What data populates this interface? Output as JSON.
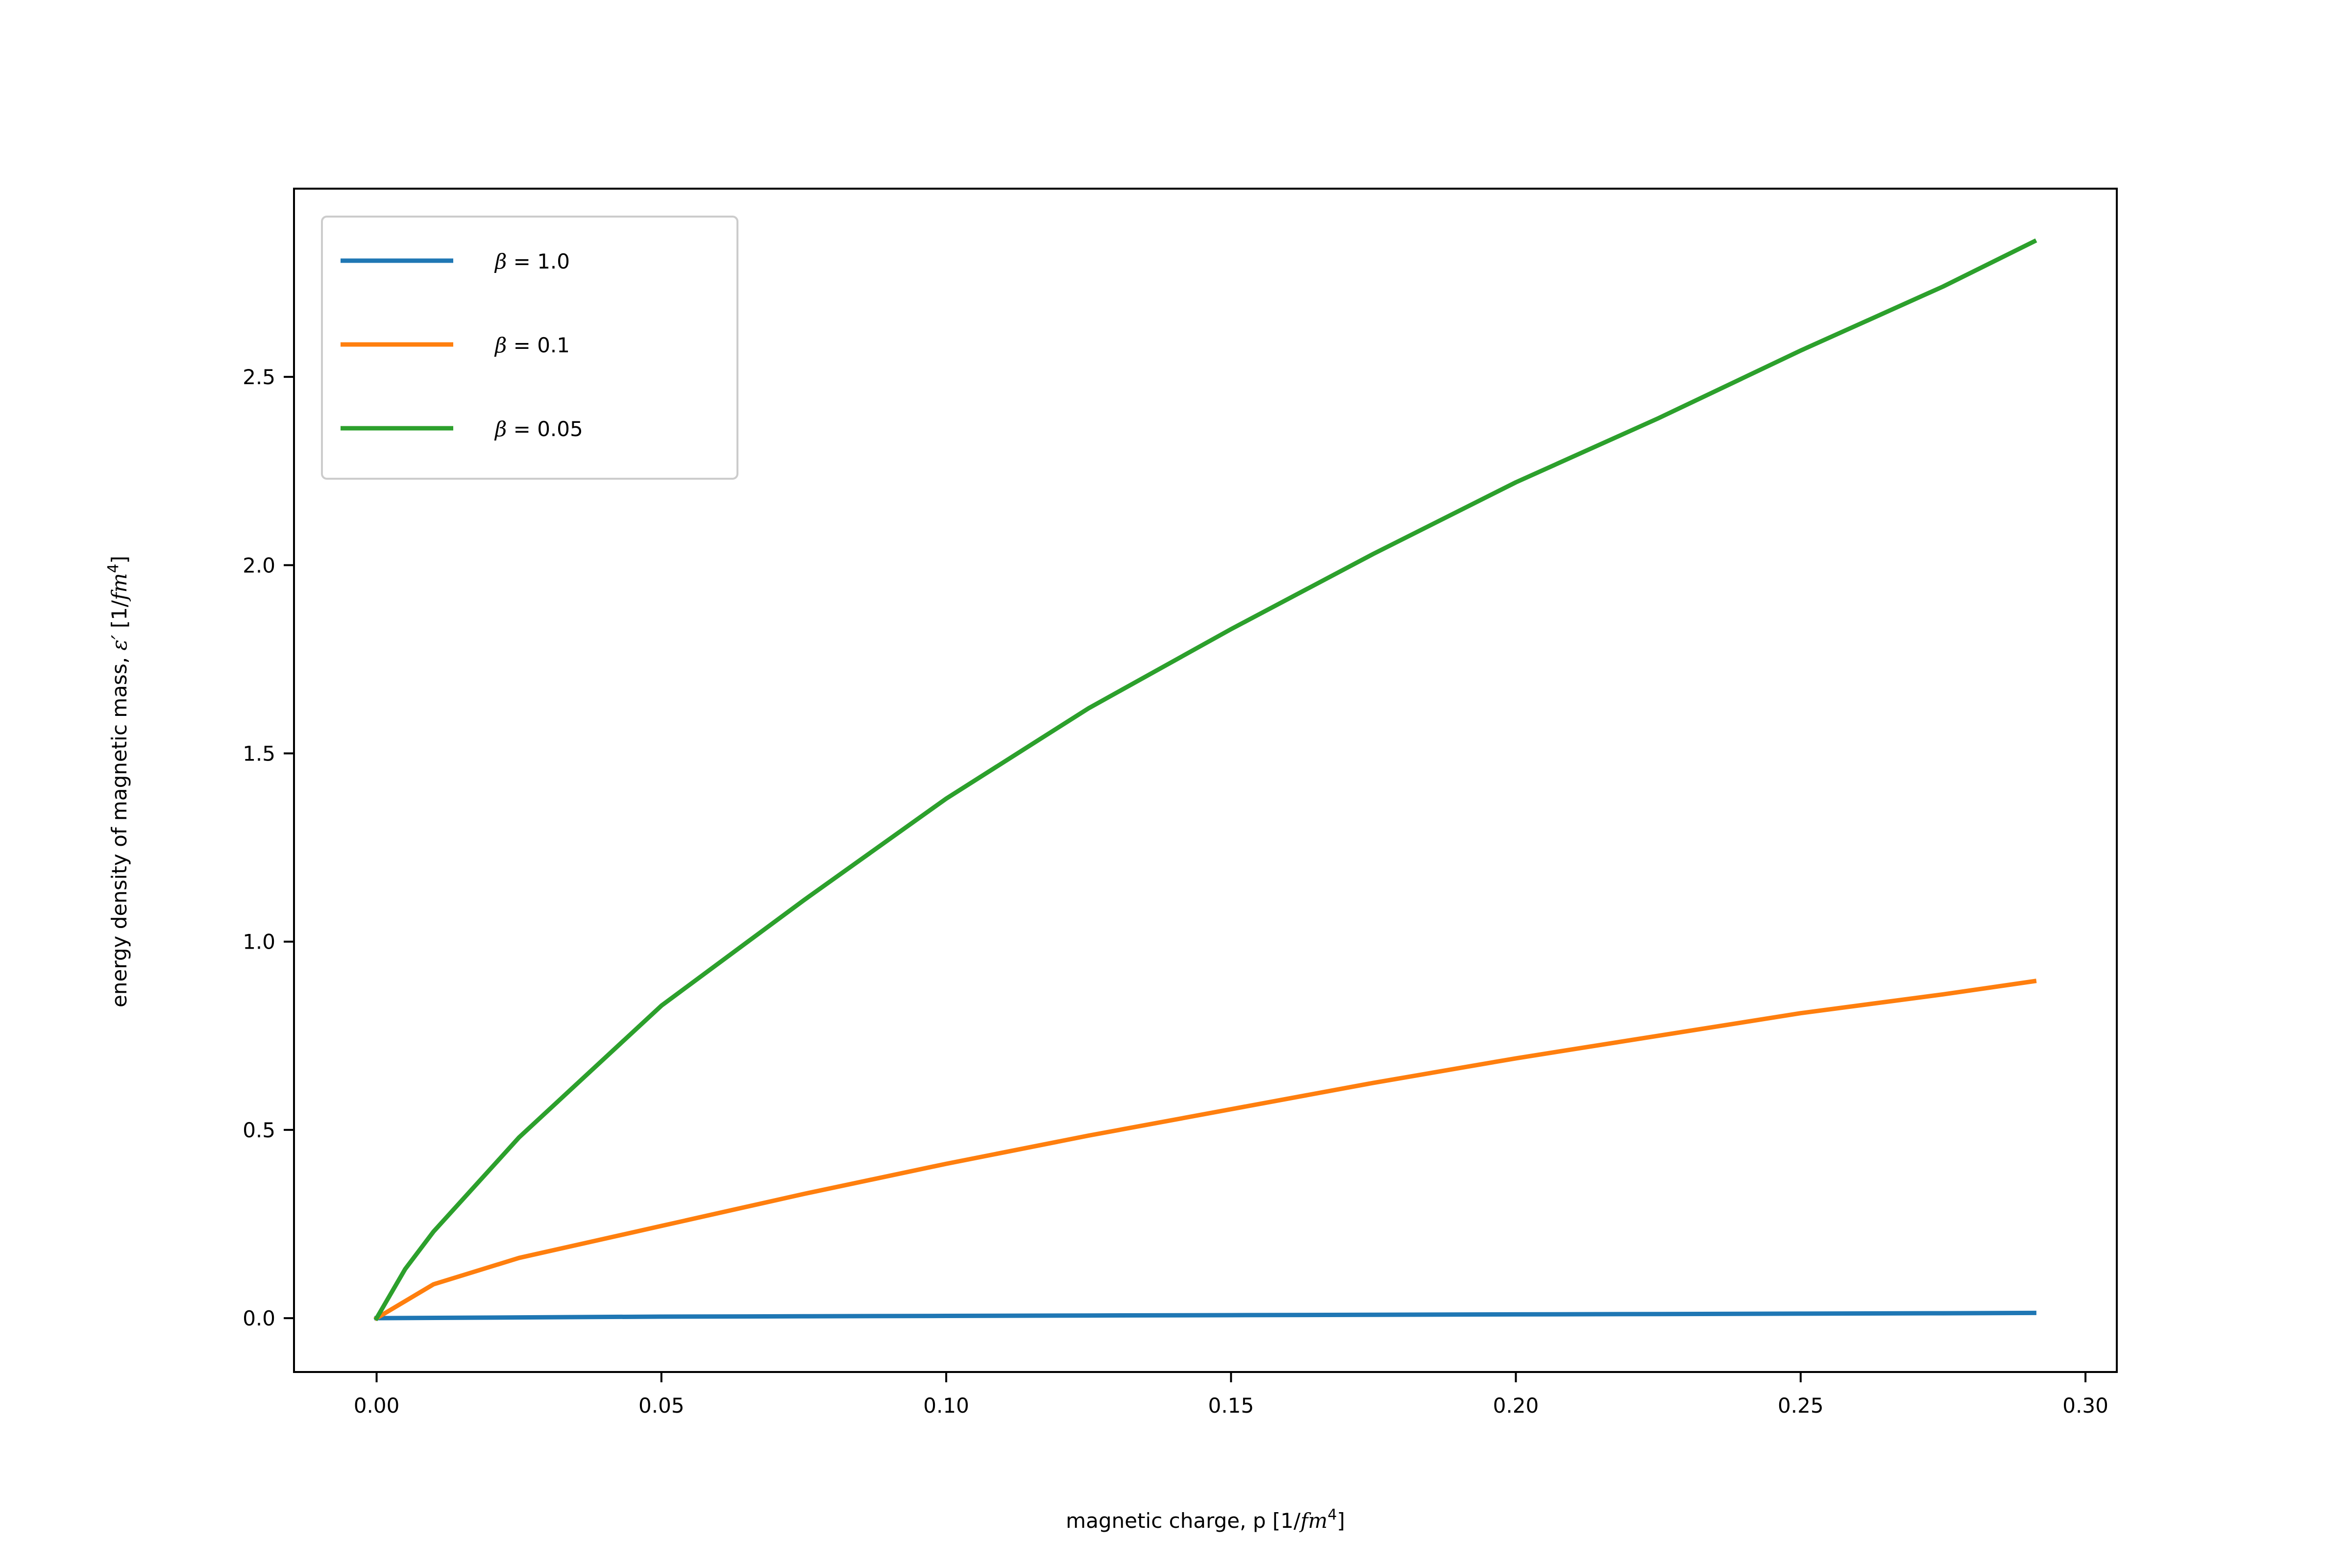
{
  "chart_data": {
    "type": "line",
    "title": "",
    "xlabel": {
      "prefix": "magnetic charge, p [1/",
      "unit_var": "fm",
      "unit_exp": "4",
      "suffix": "]"
    },
    "ylabel": {
      "prefix": "energy density of magnetic mass, ",
      "sym": "ε′",
      "mid": " [1/",
      "unit_var": "fm",
      "unit_exp": "4",
      "suffix": "]"
    },
    "xlim": [
      -0.0145,
      0.3055
    ],
    "ylim": [
      -0.143,
      3.0
    ],
    "xticks": [
      0.0,
      0.05,
      0.1,
      0.15,
      0.2,
      0.25,
      0.3
    ],
    "xtick_labels": [
      "0.00",
      "0.05",
      "0.10",
      "0.15",
      "0.20",
      "0.25",
      "0.30"
    ],
    "yticks": [
      0.0,
      0.5,
      1.0,
      1.5,
      2.0,
      2.5
    ],
    "ytick_labels": [
      "0.0",
      "0.5",
      "1.0",
      "1.5",
      "2.0",
      "2.5"
    ],
    "grid": false,
    "legend_placement": "upper-left",
    "series": [
      {
        "name": "β = 1.0",
        "name_parts": {
          "sym": "β",
          "eq": " = ",
          "val": "1.0"
        },
        "color": "#1f77b4",
        "x": [
          0.0,
          0.025,
          0.05,
          0.075,
          0.1,
          0.125,
          0.15,
          0.175,
          0.2,
          0.225,
          0.25,
          0.275,
          0.291
        ],
        "y": [
          0.0,
          0.002,
          0.004,
          0.005,
          0.006,
          0.007,
          0.008,
          0.009,
          0.01,
          0.011,
          0.012,
          0.013,
          0.014
        ]
      },
      {
        "name": "β = 0.1",
        "name_parts": {
          "sym": "β",
          "eq": " = ",
          "val": "0.1"
        },
        "color": "#ff7f0e",
        "x": [
          0.0,
          0.01,
          0.025,
          0.05,
          0.075,
          0.1,
          0.125,
          0.15,
          0.175,
          0.2,
          0.225,
          0.25,
          0.275,
          0.291
        ],
        "y": [
          0.0,
          0.09,
          0.16,
          0.245,
          0.33,
          0.41,
          0.485,
          0.555,
          0.625,
          0.69,
          0.75,
          0.81,
          0.86,
          0.895
        ]
      },
      {
        "name": "β = 0.05",
        "name_parts": {
          "sym": "β",
          "eq": " = ",
          "val": "0.05"
        },
        "color": "#2ca02c",
        "x": [
          0.0,
          0.005,
          0.01,
          0.025,
          0.05,
          0.075,
          0.1,
          0.125,
          0.15,
          0.175,
          0.2,
          0.225,
          0.25,
          0.275,
          0.291
        ],
        "y": [
          0.0,
          0.13,
          0.23,
          0.48,
          0.83,
          1.11,
          1.38,
          1.62,
          1.83,
          2.03,
          2.22,
          2.39,
          2.57,
          2.74,
          2.86
        ]
      }
    ]
  }
}
